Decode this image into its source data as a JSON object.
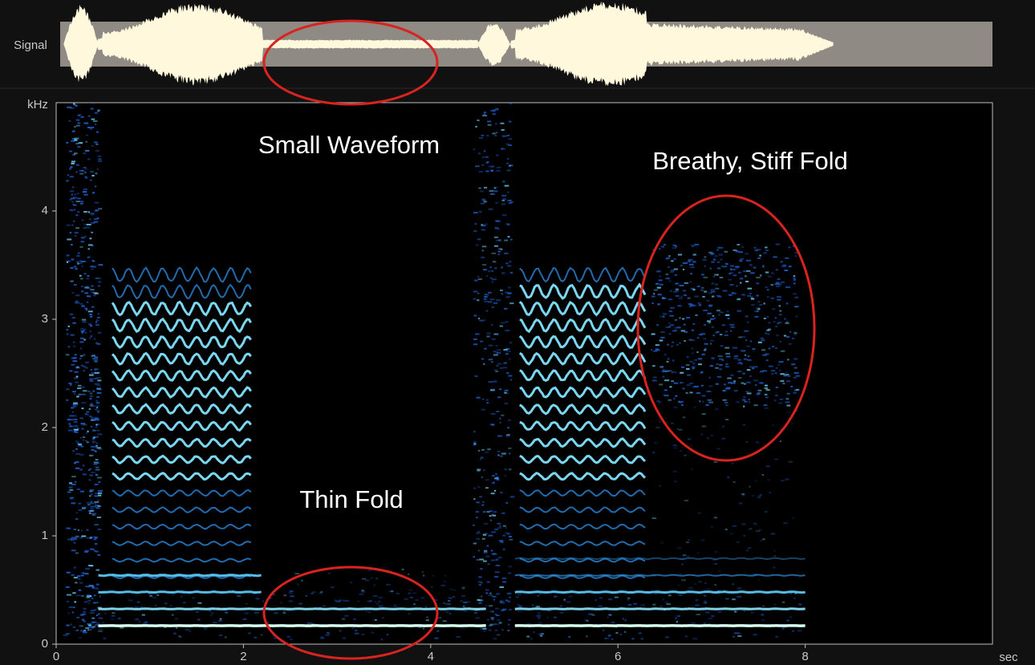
{
  "chart_data": {
    "type": "spectrogram",
    "signal_label": "Signal",
    "y_label": "kHz",
    "x_label": "sec",
    "xlim": [
      0,
      10
    ],
    "ylim": [
      0,
      5
    ],
    "xticks": [
      0,
      2,
      4,
      6,
      8
    ],
    "yticks": [
      0,
      1,
      2,
      3,
      4
    ],
    "annotations": [
      "Small Waveform",
      "Breathy, Stiff Fold",
      "Thin Fold"
    ]
  }
}
